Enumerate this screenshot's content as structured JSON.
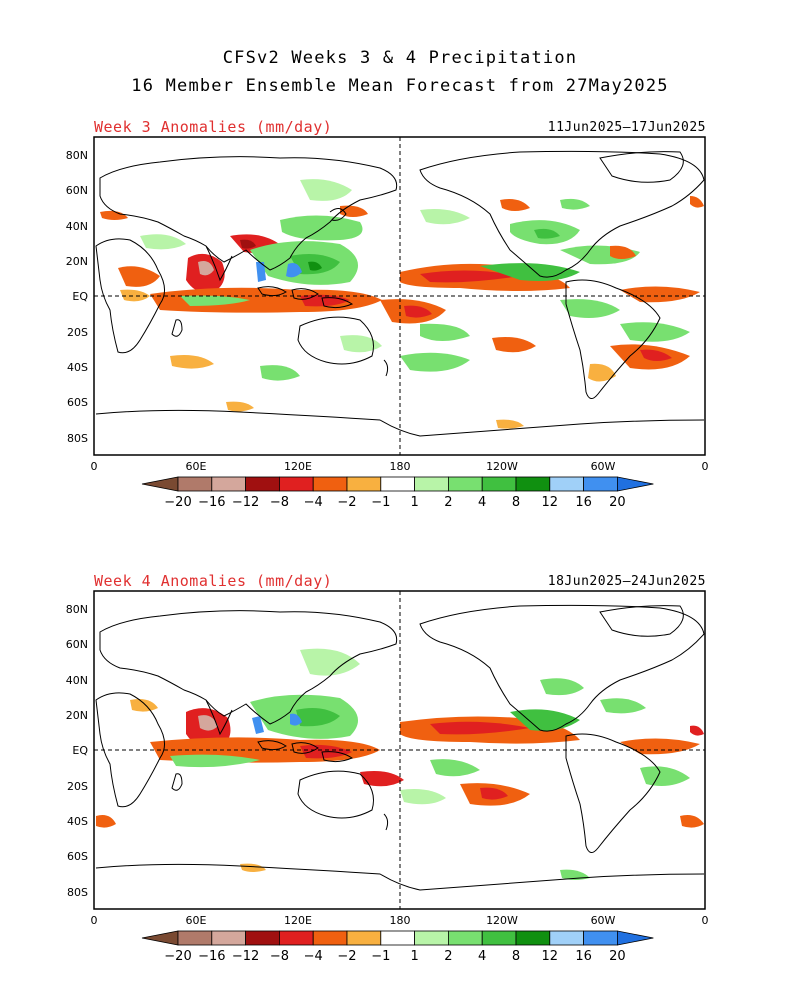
{
  "header": {
    "title_line1": "CFSv2 Weeks 3 & 4 Precipitation",
    "title_line2": "16 Member Ensemble Mean Forecast from 27May2025"
  },
  "panels": [
    {
      "label": "Week 3 Anomalies (mm/day)",
      "dates": "11Jun2025—17Jun2025",
      "lat_ticks": [
        "80N",
        "60N",
        "40N",
        "20N",
        "EQ",
        "20S",
        "40S",
        "60S",
        "80S"
      ],
      "lon_ticks": [
        "0",
        "60E",
        "120E",
        "180",
        "120W",
        "60W",
        "0"
      ]
    },
    {
      "label": "Week 4 Anomalies (mm/day)",
      "dates": "18Jun2025—24Jun2025",
      "lat_ticks": [
        "80N",
        "60N",
        "40N",
        "20N",
        "EQ",
        "20S",
        "40S",
        "60S",
        "80S"
      ],
      "lon_ticks": [
        "0",
        "60E",
        "120E",
        "180",
        "120W",
        "60W",
        "0"
      ]
    }
  ],
  "colorbar": {
    "labels": [
      "−20",
      "−16",
      "−12",
      "−8",
      "−4",
      "−2",
      "−1",
      "1",
      "2",
      "4",
      "8",
      "12",
      "16",
      "20"
    ],
    "colors": [
      "#7a4a32",
      "#b07a6a",
      "#d4a79c",
      "#a01010",
      "#e02020",
      "#f06010",
      "#f8b040",
      "#ffffff",
      "#b8f4a8",
      "#78e070",
      "#40c040",
      "#109010",
      "#a0d0f8",
      "#4090f0",
      "#2070e0"
    ]
  }
}
